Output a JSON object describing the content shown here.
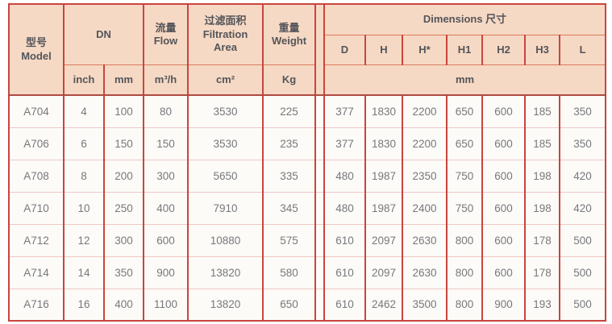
{
  "chart_data": {
    "type": "table",
    "header": {
      "model_zh": "型号",
      "model_en": "Model",
      "dn": "DN",
      "flow_zh": "流量",
      "flow_en": "Flow",
      "filtration_zh": "过滤面积",
      "filtration_en": "Filtration Area",
      "weight_zh": "重量",
      "weight_en": "Weight",
      "dimensions": "Dimensions 尺寸",
      "dim_cols": [
        "D",
        "H",
        "H*",
        "H1",
        "H2",
        "H3",
        "L"
      ],
      "unit_inch": "inch",
      "unit_mm": "mm",
      "unit_flow": "m³/h",
      "unit_area": "cm²",
      "unit_weight": "Kg",
      "unit_dims": "mm"
    },
    "rows": [
      {
        "model": "A704",
        "dn_inch": 4,
        "dn_mm": 100,
        "flow": 80,
        "area": 3530,
        "weight": 225,
        "dims": [
          377,
          1830,
          2200,
          650,
          600,
          185,
          350
        ]
      },
      {
        "model": "A706",
        "dn_inch": 6,
        "dn_mm": 150,
        "flow": 150,
        "area": 3530,
        "weight": 235,
        "dims": [
          377,
          1830,
          2200,
          650,
          600,
          185,
          350
        ]
      },
      {
        "model": "A708",
        "dn_inch": 8,
        "dn_mm": 200,
        "flow": 300,
        "area": 5650,
        "weight": 335,
        "dims": [
          480,
          1987,
          2350,
          750,
          600,
          198,
          420
        ]
      },
      {
        "model": "A710",
        "dn_inch": 10,
        "dn_mm": 250,
        "flow": 400,
        "area": 7910,
        "weight": 345,
        "dims": [
          480,
          1987,
          2400,
          750,
          600,
          198,
          420
        ]
      },
      {
        "model": "A712",
        "dn_inch": 12,
        "dn_mm": 300,
        "flow": 600,
        "area": 10880,
        "weight": 575,
        "dims": [
          610,
          2097,
          2630,
          800,
          600,
          178,
          500
        ]
      },
      {
        "model": "A714",
        "dn_inch": 14,
        "dn_mm": 350,
        "flow": 900,
        "area": 13820,
        "weight": 580,
        "dims": [
          610,
          2097,
          2630,
          800,
          600,
          178,
          500
        ]
      },
      {
        "model": "A716",
        "dn_inch": 16,
        "dn_mm": 400,
        "flow": 1100,
        "area": 13820,
        "weight": 650,
        "dims": [
          610,
          2462,
          3500,
          800,
          900,
          193,
          500
        ]
      }
    ]
  },
  "colors": {
    "header_bg": "#f6d9c4",
    "grid_red": "#c9453e",
    "header_rule_orange": "#d97a5a",
    "header_data_separator": "#ae4a40",
    "row_rule_pink": "#f1c7c4",
    "cell_bg": "#fcfbf8",
    "header_text": "#54555a",
    "cell_text": "#77787b"
  }
}
